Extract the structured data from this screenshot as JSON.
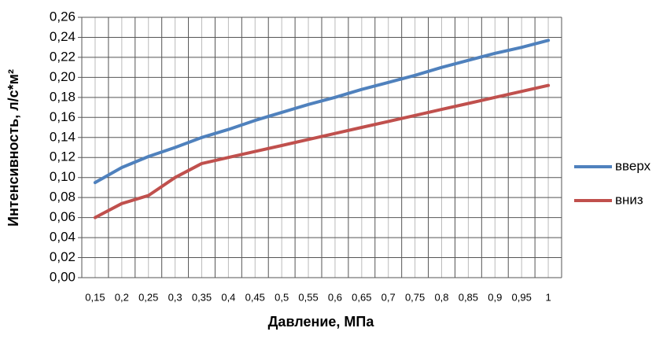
{
  "chart_data": {
    "type": "line",
    "x_label": "Давление, МПа",
    "y_label": "Интенсивность, л/с*м²",
    "categories": [
      "0,15",
      "0,2",
      "0,25",
      "0,3",
      "0,35",
      "0,4",
      "0,45",
      "0,5",
      "0,55",
      "0,6",
      "0,65",
      "0,7",
      "0,75",
      "0,8",
      "0,85",
      "0,9",
      "0,95",
      "1"
    ],
    "series": [
      {
        "name": "вверх",
        "color": "#4f81bd",
        "values": [
          0.095,
          0.11,
          0.121,
          0.13,
          0.14,
          0.148,
          0.157,
          0.165,
          0.173,
          0.18,
          0.188,
          0.195,
          0.202,
          0.21,
          0.217,
          0.224,
          0.23,
          0.237
        ]
      },
      {
        "name": "вниз",
        "color": "#c0504d",
        "values": [
          0.06,
          0.074,
          0.082,
          0.1,
          0.114,
          0.12,
          0.126,
          0.132,
          0.138,
          0.144,
          0.15,
          0.156,
          0.162,
          0.168,
          0.174,
          0.18,
          0.186,
          0.192
        ]
      }
    ],
    "ylim": [
      0,
      0.26
    ],
    "yticks": [
      {
        "value": 0,
        "label": "0,00"
      },
      {
        "value": 0.02,
        "label": "0,02"
      },
      {
        "value": 0.04,
        "label": "0,04"
      },
      {
        "value": 0.06,
        "label": "0,06"
      },
      {
        "value": 0.08,
        "label": "0,08"
      },
      {
        "value": 0.1,
        "label": "0,10"
      },
      {
        "value": 0.12,
        "label": "0,12"
      },
      {
        "value": 0.14,
        "label": "0,14"
      },
      {
        "value": 0.16,
        "label": "0,16"
      },
      {
        "value": 0.18,
        "label": "0,18"
      },
      {
        "value": 0.2,
        "label": "0,20"
      },
      {
        "value": 0.22,
        "label": "0,22"
      },
      {
        "value": 0.24,
        "label": "0,24"
      },
      {
        "value": 0.26,
        "label": "0,26"
      }
    ],
    "grid": true,
    "legend": "right"
  }
}
